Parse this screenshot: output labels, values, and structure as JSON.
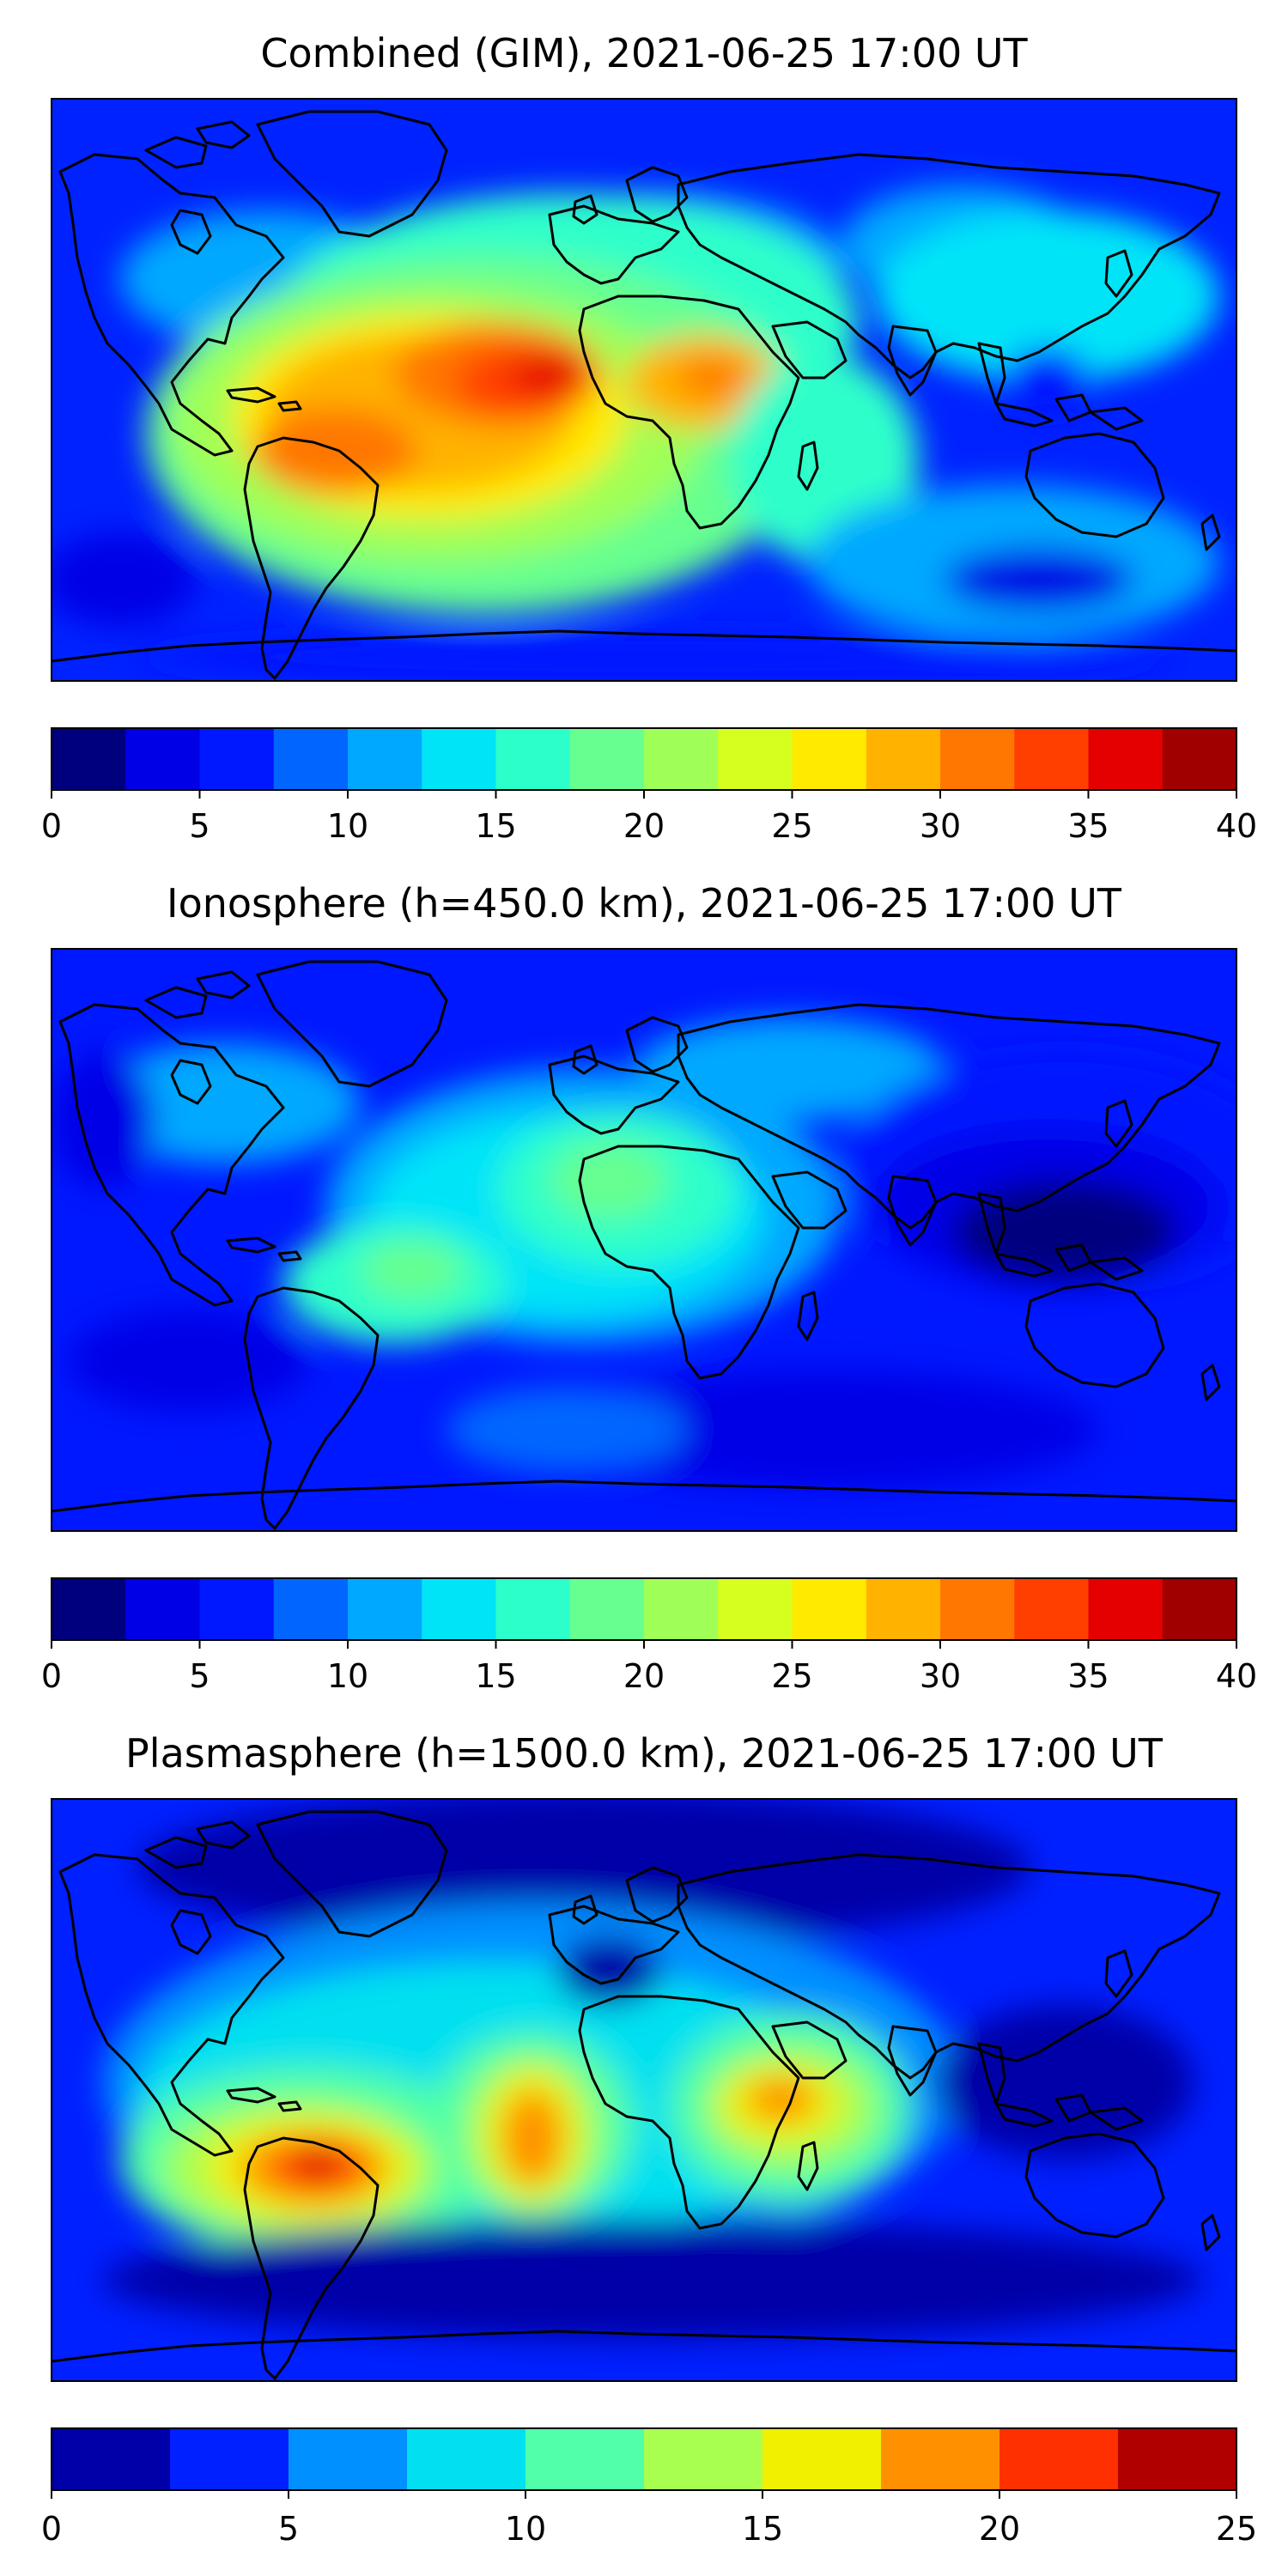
{
  "panels": [
    {
      "title": "Combined (GIM), 2021-06-25 17:00 UT",
      "colorbar": {
        "ticks": [
          "0",
          "5",
          "10",
          "15",
          "20",
          "25",
          "30",
          "35",
          "40"
        ],
        "colors": [
          "#00007f",
          "#0000e6",
          "#0018ff",
          "#0066ff",
          "#00a8ff",
          "#00e4f8",
          "#2dffca",
          "#66ff90",
          "#a0ff57",
          "#d6ff1f",
          "#ffea00",
          "#ffb200",
          "#ff7700",
          "#ff3f00",
          "#e40000",
          "#a00000"
        ]
      },
      "map": {
        "description": "global TEC map, equirectangular",
        "background_color": "#0022ff",
        "features": [
          {
            "label": "South American peak (~38)",
            "color": "#cc0000"
          },
          {
            "label": "Central Atlantic high (~30)",
            "color": "#ff6600"
          },
          {
            "label": "West African high (~30)",
            "color": "#ff8c00"
          },
          {
            "label": "Pacific low (~3)",
            "color": "#0000aa"
          }
        ]
      }
    },
    {
      "title": "Ionosphere  (h=450.0 km), 2021-06-25 17:00 UT",
      "colorbar": {
        "ticks": [
          "0",
          "5",
          "10",
          "15",
          "20",
          "25",
          "30",
          "35",
          "40"
        ],
        "colors": [
          "#00007f",
          "#0000e6",
          "#0018ff",
          "#0066ff",
          "#00a8ff",
          "#00e4f8",
          "#2dffca",
          "#66ff90",
          "#a0ff57",
          "#d6ff1f",
          "#ffea00",
          "#ffb200",
          "#ff7700",
          "#ff3f00",
          "#e40000",
          "#a00000"
        ]
      },
      "map": {
        "description": "global TEC map, equirectangular",
        "background_color": "#0018ff",
        "features": [
          {
            "label": "Africa/Atlantic moderate (~20)",
            "color": "#66ff90"
          },
          {
            "label": "South America moderate (~17)",
            "color": "#2dffca"
          },
          {
            "label": "Asia low (~3)",
            "color": "#0000aa"
          }
        ]
      }
    },
    {
      "title": "Plasmasphere (h=1500.0 km), 2021-06-25 17:00 UT",
      "colorbar": {
        "ticks": [
          "0",
          "5",
          "10",
          "15",
          "20",
          "25"
        ],
        "colors": [
          "#0000a8",
          "#0020ff",
          "#0090ff",
          "#00e0f0",
          "#50ffa8",
          "#a8ff50",
          "#f0f000",
          "#ff9000",
          "#ff3000",
          "#b00000"
        ]
      },
      "map": {
        "description": "global TEC map, equirectangular",
        "background_color": "#0020ff",
        "features": [
          {
            "label": "East Pacific peak (~23)",
            "color": "#b00000"
          },
          {
            "label": "Brazil high (~20)",
            "color": "#ff6600"
          },
          {
            "label": "East Africa high (~18)",
            "color": "#ff9000"
          }
        ]
      }
    }
  ]
}
